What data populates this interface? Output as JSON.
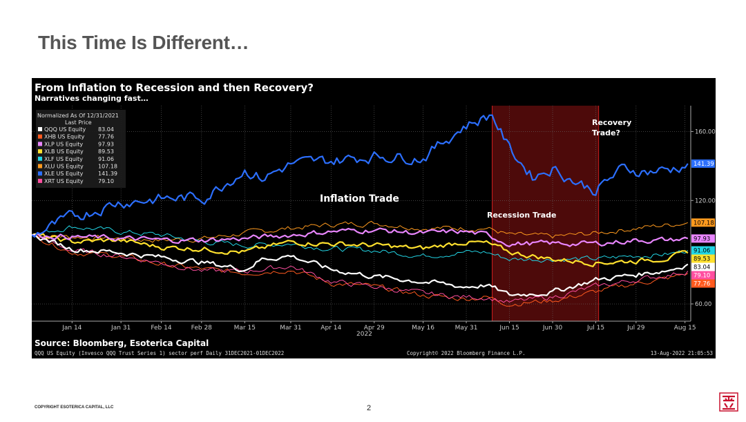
{
  "slide": {
    "title": "This Time Is Different…",
    "copyright": "COPYRIGHT ESOTERICA CAPITAL, LLC",
    "page_number": "2"
  },
  "chart_data": {
    "type": "line",
    "title": "From Inflation to Recession and then Recovery?",
    "subtitle": "Narratives changing fast…",
    "legend_header": [
      "Normalized As Of 12/31/2021",
      "Last Price"
    ],
    "x_ticks": [
      {
        "label": "Jan 14",
        "day": 14
      },
      {
        "label": "Jan 31",
        "day": 31
      },
      {
        "label": "Feb 14",
        "day": 45
      },
      {
        "label": "Feb 28",
        "day": 59
      },
      {
        "label": "Mar 15",
        "day": 74
      },
      {
        "label": "Mar 31",
        "day": 90
      },
      {
        "label": "Apr 14",
        "day": 104
      },
      {
        "label": "Apr 29",
        "day": 119
      },
      {
        "label": "May 16",
        "day": 136
      },
      {
        "label": "May 31",
        "day": 151
      },
      {
        "label": "Jun 15",
        "day": 166
      },
      {
        "label": "Jun 30",
        "day": 181
      },
      {
        "label": "Jul 15",
        "day": 196
      },
      {
        "label": "Jul 29",
        "day": 210
      },
      {
        "label": "Aug 15",
        "day": 227
      }
    ],
    "x_year_label": "2022",
    "x_range_days": [
      0,
      229
    ],
    "ylim": [
      50,
      175
    ],
    "y_ticks": [
      {
        "label": "60.00",
        "value": 60
      },
      {
        "label": "120.00",
        "value": 120
      },
      {
        "label": "160.00",
        "value": 160
      }
    ],
    "grid": true,
    "legend_position": "top-left",
    "series": [
      {
        "name": "QQQ US Equity",
        "last_label": "83.04",
        "last": 83.04,
        "color": "#ffffff",
        "knots": [
          [
            0,
            100
          ],
          [
            14,
            92
          ],
          [
            30,
            90
          ],
          [
            45,
            87
          ],
          [
            60,
            84
          ],
          [
            74,
            80
          ],
          [
            80,
            86
          ],
          [
            90,
            88
          ],
          [
            104,
            80
          ],
          [
            119,
            76
          ],
          [
            136,
            73
          ],
          [
            150,
            70
          ],
          [
            158,
            71
          ],
          [
            166,
            65
          ],
          [
            181,
            67
          ],
          [
            196,
            74
          ],
          [
            210,
            77
          ],
          [
            222,
            80
          ],
          [
            228,
            83.04
          ]
        ]
      },
      {
        "name": "XHB US Equity",
        "last_label": "77.76",
        "last": 77.76,
        "color": "#ff5a1f",
        "knots": [
          [
            0,
            100
          ],
          [
            14,
            90
          ],
          [
            30,
            88
          ],
          [
            45,
            83
          ],
          [
            60,
            80
          ],
          [
            74,
            78
          ],
          [
            90,
            80
          ],
          [
            104,
            72
          ],
          [
            119,
            70
          ],
          [
            136,
            65
          ],
          [
            150,
            63
          ],
          [
            158,
            64
          ],
          [
            166,
            60
          ],
          [
            181,
            62
          ],
          [
            196,
            67
          ],
          [
            210,
            72
          ],
          [
            222,
            75
          ],
          [
            228,
            77.76
          ]
        ]
      },
      {
        "name": "XLP US Equity",
        "last_label": "97.93",
        "last": 97.93,
        "color": "#e986ff",
        "knots": [
          [
            0,
            100
          ],
          [
            14,
            99
          ],
          [
            30,
            98
          ],
          [
            45,
            97
          ],
          [
            60,
            97
          ],
          [
            74,
            98
          ],
          [
            90,
            100
          ],
          [
            104,
            102
          ],
          [
            119,
            103
          ],
          [
            136,
            101
          ],
          [
            150,
            102
          ],
          [
            158,
            100
          ],
          [
            166,
            95
          ],
          [
            181,
            95
          ],
          [
            196,
            95
          ],
          [
            210,
            97
          ],
          [
            222,
            97
          ],
          [
            228,
            97.93
          ]
        ]
      },
      {
        "name": "XLB US Equity",
        "last_label": "89.53",
        "last": 89.53,
        "color": "#ffe12e",
        "knots": [
          [
            0,
            100
          ],
          [
            14,
            96
          ],
          [
            30,
            97
          ],
          [
            45,
            93
          ],
          [
            60,
            92
          ],
          [
            74,
            90
          ],
          [
            90,
            96
          ],
          [
            104,
            95
          ],
          [
            119,
            94
          ],
          [
            136,
            92
          ],
          [
            150,
            96
          ],
          [
            158,
            95
          ],
          [
            166,
            90
          ],
          [
            181,
            86
          ],
          [
            196,
            84
          ],
          [
            210,
            85
          ],
          [
            222,
            87
          ],
          [
            228,
            89.53
          ]
        ]
      },
      {
        "name": "XLF US Equity",
        "last_label": "91.06",
        "last": 91.06,
        "color": "#22d6e6",
        "knots": [
          [
            0,
            100
          ],
          [
            14,
            105
          ],
          [
            30,
            102
          ],
          [
            45,
            100
          ],
          [
            60,
            96
          ],
          [
            74,
            94
          ],
          [
            90,
            95
          ],
          [
            104,
            92
          ],
          [
            119,
            91
          ],
          [
            136,
            88
          ],
          [
            150,
            90
          ],
          [
            158,
            90
          ],
          [
            166,
            86
          ],
          [
            181,
            86
          ],
          [
            196,
            86
          ],
          [
            210,
            88
          ],
          [
            222,
            89
          ],
          [
            228,
            91.06
          ]
        ]
      },
      {
        "name": "XLU US Equity",
        "last_label": "107.18",
        "last": 107.18,
        "color": "#ff9a1e",
        "knots": [
          [
            0,
            100
          ],
          [
            14,
            99
          ],
          [
            30,
            98
          ],
          [
            45,
            97
          ],
          [
            60,
            98
          ],
          [
            74,
            101
          ],
          [
            90,
            104
          ],
          [
            104,
            106
          ],
          [
            119,
            107
          ],
          [
            136,
            104
          ],
          [
            150,
            104
          ],
          [
            158,
            104
          ],
          [
            166,
            100
          ],
          [
            181,
            99
          ],
          [
            196,
            101
          ],
          [
            210,
            104
          ],
          [
            222,
            106
          ],
          [
            228,
            107.18
          ]
        ]
      },
      {
        "name": "XLE US Equity",
        "last_label": "141.39",
        "last": 141.39,
        "color": "#2c6fff",
        "knots": [
          [
            0,
            100
          ],
          [
            14,
            110
          ],
          [
            30,
            119
          ],
          [
            45,
            121
          ],
          [
            60,
            122
          ],
          [
            74,
            138
          ],
          [
            80,
            133
          ],
          [
            90,
            141
          ],
          [
            104,
            143
          ],
          [
            119,
            146
          ],
          [
            136,
            145
          ],
          [
            150,
            163
          ],
          [
            160,
            170
          ],
          [
            166,
            150
          ],
          [
            174,
            134
          ],
          [
            181,
            139
          ],
          [
            190,
            130
          ],
          [
            196,
            126
          ],
          [
            205,
            138
          ],
          [
            215,
            137
          ],
          [
            222,
            138
          ],
          [
            228,
            141.39
          ]
        ]
      },
      {
        "name": "XRT US Equity",
        "last_label": "79.10",
        "last": 79.1,
        "color": "#ff4fa0",
        "knots": [
          [
            0,
            100
          ],
          [
            14,
            91
          ],
          [
            30,
            88
          ],
          [
            45,
            84
          ],
          [
            60,
            79
          ],
          [
            74,
            79
          ],
          [
            90,
            82
          ],
          [
            104,
            73
          ],
          [
            119,
            70
          ],
          [
            136,
            66
          ],
          [
            150,
            64
          ],
          [
            158,
            64
          ],
          [
            166,
            61
          ],
          [
            181,
            64
          ],
          [
            196,
            70
          ],
          [
            210,
            74
          ],
          [
            222,
            77
          ],
          [
            228,
            79.1
          ]
        ]
      }
    ],
    "annotations": [
      {
        "text": "Inflation Trade"
      },
      {
        "text": "Recession Trade"
      },
      {
        "text": "Recovery"
      },
      {
        "text": "Trade?"
      }
    ],
    "recession_shade": {
      "x_start_day": 160,
      "x_end_day": 197,
      "color": "#5a0c0c"
    },
    "source": "Source: Bloomberg, Esoterica Capital",
    "footer_left": "QQQ US Equity (Invesco QQQ Trust Series 1) sector perf  Daily 31DEC2021-01DEC2022",
    "footer_center": "Copyright© 2022 Bloomberg Finance L.P.",
    "footer_right": "13-Aug-2022 21:05:53"
  }
}
